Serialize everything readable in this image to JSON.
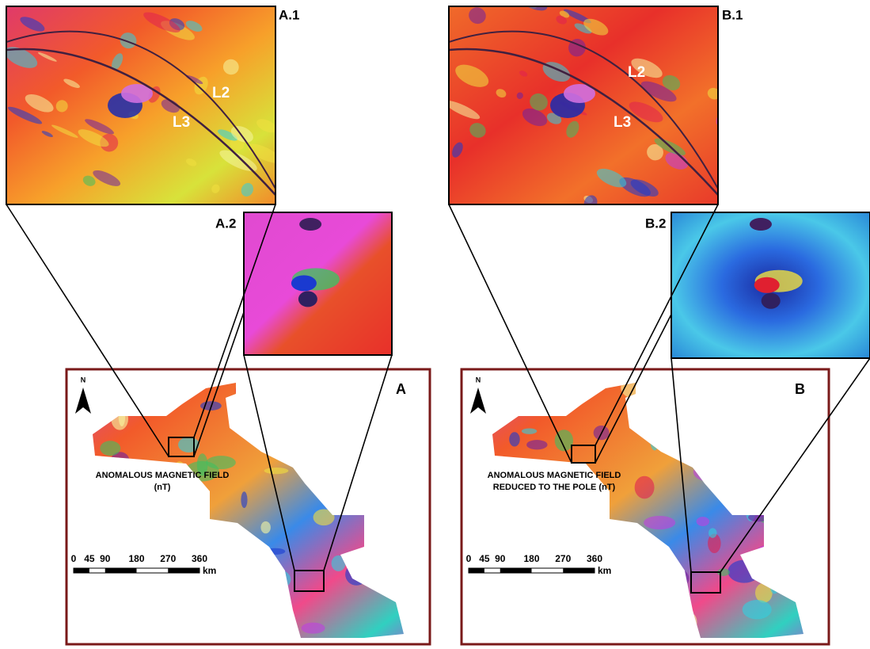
{
  "figures": [
    {
      "map_label": "A",
      "north": "N",
      "caption": [
        "ANOMALOUS MAGNETIC FIELD",
        "(nT)"
      ],
      "zoom_1": {
        "label": "A.1",
        "annotations": [
          "L2",
          "L3"
        ]
      },
      "zoom_2": {
        "label": "A.2"
      },
      "scale": {
        "ticks": [
          0,
          45,
          90,
          180,
          270,
          360
        ],
        "unit": "km"
      }
    },
    {
      "map_label": "B",
      "north": "N",
      "caption": [
        "ANOMALOUS MAGNETIC FIELD",
        "REDUCED TO THE POLE (nT)"
      ],
      "zoom_1": {
        "label": "B.1",
        "annotations": [
          "L2",
          "L3"
        ]
      },
      "zoom_2": {
        "label": "B.2"
      },
      "scale": {
        "ticks": [
          0,
          45,
          90,
          180,
          270,
          360
        ],
        "unit": "km"
      }
    }
  ]
}
